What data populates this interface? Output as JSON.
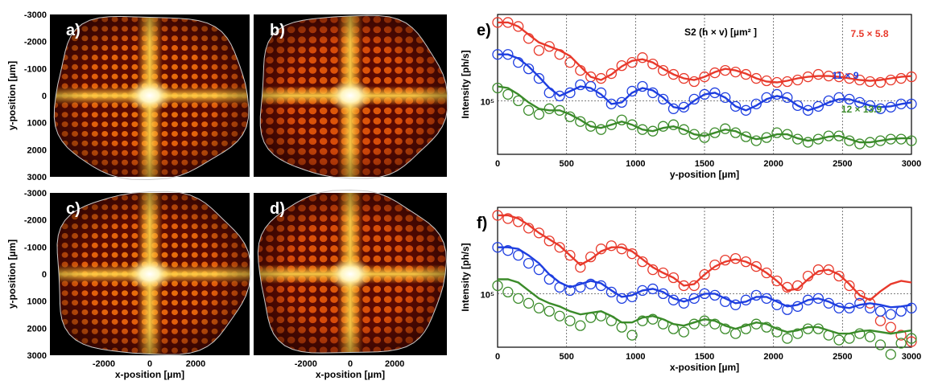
{
  "chart_data": [
    {
      "panel": "a)",
      "type": "heatmap",
      "variant": "ideal",
      "xlabel": "",
      "ylabel": "y-position [µm]",
      "yticks": [
        "-3000",
        "-2000",
        "-1000",
        "0",
        "1000",
        "2000",
        "3000"
      ],
      "xticks": []
    },
    {
      "panel": "b)",
      "type": "heatmap",
      "variant": "measured",
      "xlabel": "",
      "ylabel": "",
      "yticks": [],
      "xticks": []
    },
    {
      "panel": "c)",
      "type": "heatmap",
      "variant": "ideal",
      "xlabel": "x-position [µm]",
      "ylabel": "y-position [µm]",
      "yticks": [
        "-3000",
        "-2000",
        "-1000",
        "0",
        "1000",
        "2000",
        "3000"
      ],
      "xticks": [
        "-2000",
        "0",
        "2000"
      ]
    },
    {
      "panel": "d)",
      "type": "heatmap",
      "variant": "measured",
      "xlabel": "x-position [µm]",
      "ylabel": "",
      "yticks": [],
      "xticks": [
        "-2000",
        "0",
        "2000"
      ]
    },
    {
      "panel": "e)",
      "type": "line",
      "title": "S2 (h × v) [µm² ]",
      "xlabel": "y-position [µm]",
      "ylabel": "Intensity [ph/s]",
      "xlim": [
        0,
        3000
      ],
      "xticks": [
        "0",
        "500",
        "1000",
        "1500",
        "2000",
        "2500",
        "3000"
      ],
      "ytick_label": "10⁵",
      "series": [
        {
          "name": "7.5 × 5.8",
          "color": "#e8392b",
          "x": [
            0,
            75,
            150,
            225,
            300,
            375,
            450,
            525,
            600,
            675,
            750,
            825,
            900,
            975,
            1050,
            1125,
            1200,
            1275,
            1350,
            1425,
            1500,
            1575,
            1650,
            1725,
            1800,
            1875,
            1950,
            2025,
            2100,
            2175,
            2250,
            2325,
            2400,
            2475,
            2550,
            2625,
            2700,
            2775,
            2850,
            2925,
            3000
          ],
          "fit": [
            2.6,
            2.6,
            2.55,
            2.45,
            2.35,
            2.3,
            2.25,
            2.18,
            2.05,
            1.92,
            1.88,
            1.95,
            2.05,
            2.12,
            2.14,
            2.1,
            2.02,
            1.95,
            1.9,
            1.88,
            1.92,
            1.98,
            2.02,
            2.0,
            1.96,
            1.9,
            1.86,
            1.85,
            1.87,
            1.9,
            1.92,
            1.93,
            1.93,
            1.92,
            1.9,
            1.88,
            1.87,
            1.88,
            1.9,
            1.92,
            1.93
          ],
          "points": [
            2.6,
            2.6,
            2.55,
            2.4,
            2.25,
            2.3,
            2.2,
            2.1,
            2.0,
            1.92,
            1.9,
            1.96,
            2.06,
            2.1,
            2.16,
            2.08,
            2.0,
            1.95,
            1.9,
            1.86,
            1.92,
            1.97,
            2.0,
            1.98,
            1.95,
            1.9,
            1.87,
            1.85,
            1.86,
            1.88,
            1.92,
            1.95,
            1.93,
            1.92,
            1.9,
            1.88,
            1.86,
            1.85,
            1.88,
            1.9,
            1.92
          ]
        },
        {
          "name": "11 × 9",
          "color": "#1e3ee0",
          "x": [
            0,
            75,
            150,
            225,
            300,
            375,
            450,
            525,
            600,
            675,
            750,
            825,
            900,
            975,
            1050,
            1125,
            1200,
            1275,
            1350,
            1425,
            1500,
            1575,
            1650,
            1725,
            1800,
            1875,
            1950,
            2025,
            2100,
            2175,
            2250,
            2325,
            2400,
            2475,
            2550,
            2625,
            2700,
            2775,
            2850,
            2925,
            3000
          ],
          "fit": [
            2.2,
            2.2,
            2.15,
            2.05,
            1.92,
            1.78,
            1.68,
            1.74,
            1.8,
            1.78,
            1.7,
            1.58,
            1.6,
            1.72,
            1.78,
            1.75,
            1.66,
            1.54,
            1.52,
            1.62,
            1.7,
            1.72,
            1.66,
            1.55,
            1.5,
            1.56,
            1.64,
            1.68,
            1.65,
            1.56,
            1.5,
            1.54,
            1.6,
            1.64,
            1.64,
            1.6,
            1.56,
            1.54,
            1.55,
            1.58,
            1.6
          ],
          "points": [
            2.2,
            2.2,
            2.1,
            2.02,
            1.9,
            1.72,
            1.68,
            1.72,
            1.82,
            1.8,
            1.72,
            1.58,
            1.6,
            1.74,
            1.8,
            1.72,
            1.64,
            1.52,
            1.54,
            1.64,
            1.7,
            1.72,
            1.66,
            1.55,
            1.5,
            1.58,
            1.66,
            1.7,
            1.66,
            1.56,
            1.5,
            1.55,
            1.62,
            1.66,
            1.64,
            1.6,
            1.56,
            1.52,
            1.54,
            1.58,
            1.58
          ]
        },
        {
          "name": "12 × 13.9",
          "color": "#3b8b2a",
          "x": [
            0,
            75,
            150,
            225,
            300,
            375,
            450,
            525,
            600,
            675,
            750,
            825,
            900,
            975,
            1050,
            1125,
            1200,
            1275,
            1350,
            1425,
            1500,
            1575,
            1650,
            1725,
            1800,
            1875,
            1950,
            2025,
            2100,
            2175,
            2250,
            2325,
            2400,
            2475,
            2550,
            2625,
            2700,
            2775,
            2850,
            2925,
            3000
          ],
          "fit": [
            1.8,
            1.78,
            1.7,
            1.6,
            1.52,
            1.5,
            1.5,
            1.45,
            1.38,
            1.3,
            1.28,
            1.32,
            1.36,
            1.32,
            1.26,
            1.24,
            1.28,
            1.3,
            1.26,
            1.2,
            1.18,
            1.22,
            1.26,
            1.24,
            1.18,
            1.14,
            1.16,
            1.2,
            1.2,
            1.15,
            1.12,
            1.14,
            1.17,
            1.18,
            1.14,
            1.1,
            1.1,
            1.12,
            1.14,
            1.15,
            1.15
          ],
          "points": [
            1.78,
            1.7,
            1.62,
            1.5,
            1.45,
            1.52,
            1.5,
            1.42,
            1.36,
            1.3,
            1.26,
            1.32,
            1.38,
            1.32,
            1.26,
            1.24,
            1.3,
            1.32,
            1.26,
            1.2,
            1.16,
            1.22,
            1.27,
            1.22,
            1.17,
            1.12,
            1.16,
            1.22,
            1.2,
            1.14,
            1.1,
            1.14,
            1.18,
            1.18,
            1.12,
            1.08,
            1.1,
            1.12,
            1.14,
            1.14,
            1.12
          ]
        }
      ]
    },
    {
      "panel": "f)",
      "type": "line",
      "xlabel": "x-position [µm]",
      "ylabel": "Intensity [ph/s]",
      "xlim": [
        0,
        3000
      ],
      "xticks": [
        "0",
        "500",
        "1000",
        "1500",
        "2000",
        "2500",
        "3000"
      ],
      "ytick_label": "10⁵",
      "series": [
        {
          "color": "#e8392b",
          "x": [
            0,
            75,
            150,
            225,
            300,
            375,
            450,
            525,
            600,
            675,
            750,
            825,
            900,
            975,
            1050,
            1125,
            1200,
            1275,
            1350,
            1425,
            1500,
            1575,
            1650,
            1725,
            1800,
            1875,
            1950,
            2025,
            2100,
            2175,
            2250,
            2325,
            2400,
            2475,
            2550,
            2625,
            2700,
            2775,
            2850,
            2925,
            3000
          ],
          "fit": [
            2.6,
            2.6,
            2.56,
            2.48,
            2.38,
            2.3,
            2.22,
            2.1,
            1.98,
            2.05,
            2.15,
            2.2,
            2.2,
            2.15,
            2.05,
            1.95,
            1.88,
            1.82,
            1.72,
            1.74,
            1.86,
            1.96,
            2.02,
            2.05,
            2.02,
            1.96,
            1.88,
            1.78,
            1.66,
            1.68,
            1.8,
            1.9,
            1.92,
            1.86,
            1.74,
            1.6,
            1.54,
            1.65,
            1.74,
            1.78,
            1.76
          ],
          "points": [
            2.6,
            2.56,
            2.52,
            2.44,
            2.38,
            2.28,
            2.2,
            2.1,
            1.95,
            2.08,
            2.18,
            2.22,
            2.18,
            2.12,
            2.02,
            1.92,
            1.88,
            1.82,
            1.72,
            1.72,
            1.86,
            1.98,
            2.04,
            2.06,
            2.02,
            1.96,
            1.88,
            1.78,
            1.7,
            1.72,
            1.84,
            1.92,
            1.92,
            1.84,
            1.72,
            1.6,
            1.5,
            1.28,
            1.2,
            1.1,
            1.02
          ]
        },
        {
          "color": "#1e3ee0",
          "x": [
            0,
            75,
            150,
            225,
            300,
            375,
            450,
            525,
            600,
            675,
            750,
            825,
            900,
            975,
            1050,
            1125,
            1200,
            1275,
            1350,
            1425,
            1500,
            1575,
            1650,
            1725,
            1800,
            1875,
            1950,
            2025,
            2100,
            2175,
            2250,
            2325,
            2400,
            2475,
            2550,
            2625,
            2700,
            2775,
            2850,
            2925,
            3000
          ],
          "fit": [
            2.2,
            2.2,
            2.18,
            2.1,
            2.0,
            1.86,
            1.76,
            1.7,
            1.74,
            1.78,
            1.75,
            1.66,
            1.58,
            1.6,
            1.66,
            1.68,
            1.64,
            1.56,
            1.52,
            1.56,
            1.62,
            1.62,
            1.56,
            1.5,
            1.52,
            1.58,
            1.58,
            1.52,
            1.46,
            1.48,
            1.54,
            1.56,
            1.52,
            1.46,
            1.44,
            1.48,
            1.5,
            1.48,
            1.45,
            1.46,
            1.48
          ],
          "points": [
            2.2,
            2.16,
            2.1,
            2.0,
            1.92,
            1.8,
            1.7,
            1.66,
            1.7,
            1.74,
            1.72,
            1.64,
            1.56,
            1.58,
            1.66,
            1.68,
            1.62,
            1.54,
            1.5,
            1.56,
            1.62,
            1.6,
            1.52,
            1.48,
            1.54,
            1.6,
            1.56,
            1.48,
            1.42,
            1.46,
            1.54,
            1.56,
            1.5,
            1.44,
            1.44,
            1.5,
            1.44,
            1.4,
            1.36,
            1.4,
            1.44
          ]
        },
        {
          "color": "#3b8b2a",
          "x": [
            0,
            75,
            150,
            225,
            300,
            375,
            450,
            525,
            600,
            675,
            750,
            825,
            900,
            975,
            1050,
            1125,
            1200,
            1275,
            1350,
            1425,
            1500,
            1575,
            1650,
            1725,
            1800,
            1875,
            1950,
            2025,
            2100,
            2175,
            2250,
            2325,
            2400,
            2475,
            2550,
            2625,
            2700,
            2775,
            2850,
            2925,
            3000
          ],
          "fit": [
            1.8,
            1.8,
            1.76,
            1.66,
            1.56,
            1.5,
            1.46,
            1.4,
            1.36,
            1.38,
            1.4,
            1.34,
            1.26,
            1.26,
            1.32,
            1.34,
            1.3,
            1.24,
            1.22,
            1.26,
            1.3,
            1.28,
            1.22,
            1.18,
            1.22,
            1.26,
            1.24,
            1.18,
            1.14,
            1.16,
            1.2,
            1.2,
            1.16,
            1.12,
            1.12,
            1.15,
            1.16,
            1.14,
            1.12,
            1.14,
            1.16
          ],
          "points": [
            1.72,
            1.64,
            1.56,
            1.5,
            1.44,
            1.4,
            1.34,
            1.28,
            1.22,
            1.32,
            1.34,
            1.28,
            1.2,
            1.1,
            1.28,
            1.3,
            1.24,
            1.18,
            1.14,
            1.24,
            1.28,
            1.24,
            1.18,
            1.12,
            1.18,
            1.24,
            1.2,
            1.14,
            1.06,
            1.12,
            1.18,
            1.18,
            1.1,
            1.04,
            1.06,
            1.12,
            1.08,
            0.98,
            0.86,
            1.0,
            1.06
          ]
        }
      ]
    }
  ]
}
